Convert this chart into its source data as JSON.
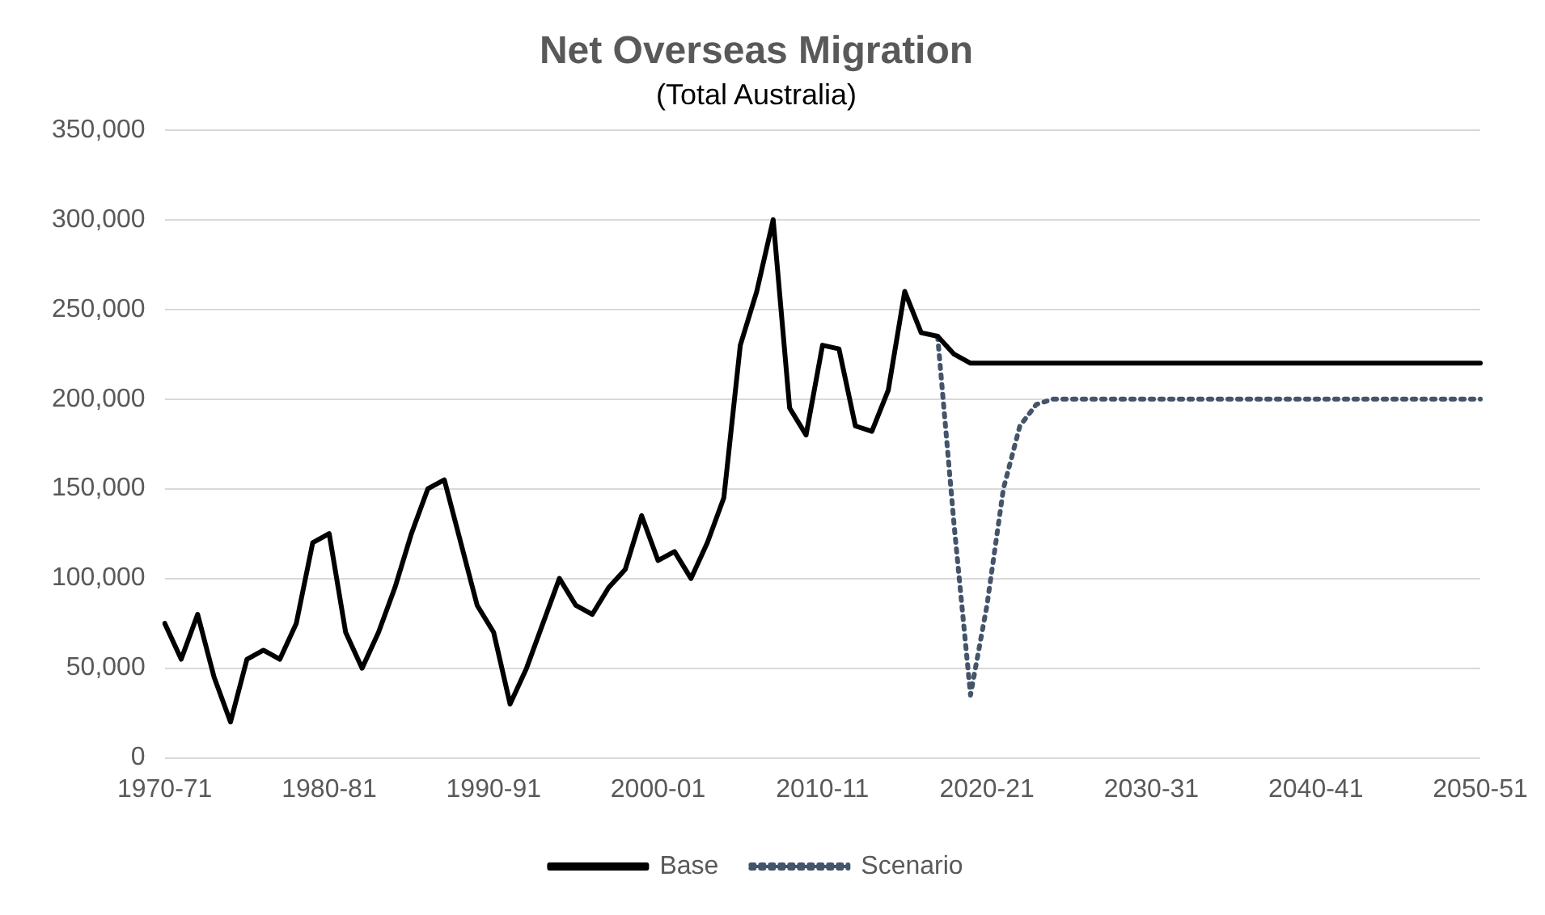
{
  "chart_data": {
    "type": "line",
    "title": "Net Overseas Migration",
    "subtitle": "(Total Australia)",
    "categories": [
      "1970-71",
      null,
      null,
      null,
      null,
      null,
      null,
      null,
      null,
      null,
      "1980-81",
      null,
      null,
      null,
      null,
      null,
      null,
      null,
      null,
      null,
      "1990-91",
      null,
      null,
      null,
      null,
      null,
      null,
      null,
      null,
      null,
      "2000-01",
      null,
      null,
      null,
      null,
      null,
      null,
      null,
      null,
      null,
      "2010-11",
      null,
      null,
      null,
      null,
      null,
      null,
      null,
      null,
      null,
      "2020-21",
      null,
      null,
      null,
      null,
      null,
      null,
      null,
      null,
      null,
      "2030-31",
      null,
      null,
      null,
      null,
      null,
      null,
      null,
      null,
      null,
      "2040-41",
      null,
      null,
      null,
      null,
      null,
      null,
      null,
      null,
      null,
      "2050-51"
    ],
    "series": [
      {
        "name": "Base",
        "color": "#000000",
        "line_style": "solid",
        "values": [
          75000,
          55000,
          80000,
          45000,
          20000,
          55000,
          60000,
          55000,
          75000,
          120000,
          125000,
          70000,
          50000,
          70000,
          95000,
          125000,
          150000,
          155000,
          120000,
          85000,
          70000,
          30000,
          50000,
          75000,
          100000,
          85000,
          80000,
          95000,
          105000,
          135000,
          110000,
          115000,
          100000,
          120000,
          145000,
          230000,
          260000,
          300000,
          195000,
          180000,
          230000,
          228000,
          185000,
          182000,
          205000,
          260000,
          237000,
          235000,
          225000,
          220000,
          220000,
          220000,
          220000,
          220000,
          220000,
          220000,
          220000,
          220000,
          220000,
          220000,
          220000,
          220000,
          220000,
          220000,
          220000,
          220000,
          220000,
          220000,
          220000,
          220000,
          220000,
          220000,
          220000,
          220000,
          220000,
          220000,
          220000,
          220000,
          220000,
          220000,
          220000
        ]
      },
      {
        "name": "Scenario",
        "color": "#44546a",
        "line_style": "dotted",
        "values": [
          null,
          null,
          null,
          null,
          null,
          null,
          null,
          null,
          null,
          null,
          null,
          null,
          null,
          null,
          null,
          null,
          null,
          null,
          null,
          null,
          null,
          null,
          null,
          null,
          null,
          null,
          null,
          null,
          null,
          null,
          null,
          null,
          null,
          null,
          null,
          null,
          null,
          null,
          null,
          null,
          null,
          null,
          null,
          null,
          null,
          null,
          null,
          235000,
          130000,
          35000,
          85000,
          150000,
          185000,
          197000,
          200000,
          200000,
          200000,
          200000,
          200000,
          200000,
          200000,
          200000,
          200000,
          200000,
          200000,
          200000,
          200000,
          200000,
          200000,
          200000,
          200000,
          200000,
          200000,
          200000,
          200000,
          200000,
          200000,
          200000,
          200000,
          200000,
          200000
        ]
      }
    ],
    "ylim": [
      0,
      350000
    ],
    "yticks": [
      {
        "value": 0,
        "label": "0"
      },
      {
        "value": 50000,
        "label": "50,000"
      },
      {
        "value": 100000,
        "label": "100,000"
      },
      {
        "value": 150000,
        "label": "150,000"
      },
      {
        "value": 200000,
        "label": "200,000"
      },
      {
        "value": 250000,
        "label": "250,000"
      },
      {
        "value": 300000,
        "label": "300,000"
      },
      {
        "value": 350000,
        "label": "350,000"
      }
    ],
    "grid": "y",
    "legend": "bottom",
    "marker": "none"
  }
}
